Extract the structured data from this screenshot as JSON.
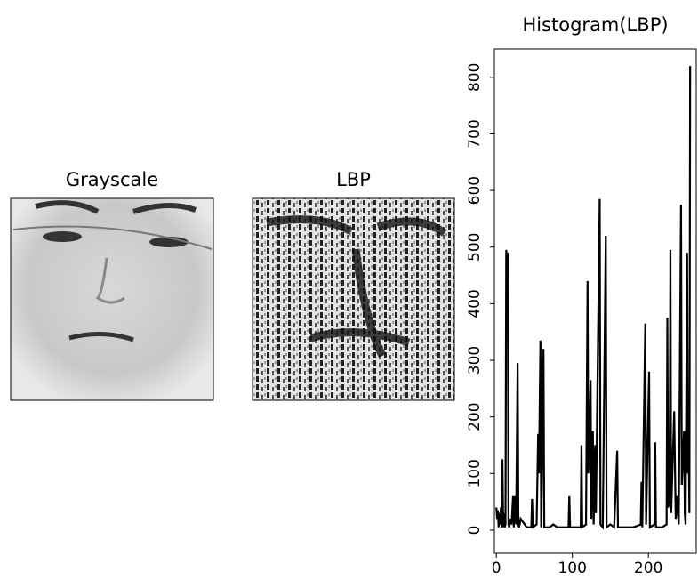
{
  "chart_data": [
    {
      "type": "image",
      "title": "Grayscale"
    },
    {
      "type": "image",
      "title": "LBP"
    },
    {
      "type": "line",
      "title": "Histogram(LBP)",
      "color": "#000000",
      "x": [
        0,
        1,
        2,
        3,
        4,
        5,
        6,
        7,
        8,
        9,
        10,
        11,
        12,
        13,
        14,
        15,
        16,
        17,
        18,
        20,
        22,
        23,
        24,
        26,
        28,
        29,
        30,
        32,
        40,
        46,
        47,
        48,
        53,
        55,
        56,
        58,
        59,
        62,
        63,
        65,
        70,
        75,
        80,
        90,
        95,
        96,
        97,
        105,
        111,
        112,
        113,
        118,
        120,
        121,
        124,
        125,
        127,
        128,
        130,
        131,
        136,
        137,
        140,
        144,
        145,
        150,
        155,
        159,
        160,
        170,
        180,
        190,
        191,
        192,
        196,
        197,
        201,
        202,
        208,
        209,
        210,
        218,
        224,
        225,
        226,
        228,
        229,
        230,
        234,
        236,
        237,
        240,
        243,
        244,
        247,
        248,
        249,
        251,
        252,
        253,
        254,
        255
      ],
      "values": [
        40,
        20,
        35,
        5,
        30,
        10,
        40,
        5,
        125,
        5,
        30,
        5,
        10,
        495,
        480,
        490,
        10,
        5,
        20,
        10,
        60,
        5,
        60,
        10,
        295,
        10,
        5,
        20,
        5,
        5,
        55,
        5,
        10,
        170,
        100,
        335,
        5,
        320,
        5,
        5,
        5,
        10,
        5,
        5,
        5,
        60,
        5,
        5,
        5,
        150,
        5,
        10,
        440,
        100,
        265,
        20,
        175,
        10,
        150,
        30,
        585,
        10,
        5,
        520,
        5,
        10,
        5,
        140,
        5,
        5,
        5,
        10,
        85,
        5,
        365,
        10,
        280,
        5,
        10,
        155,
        5,
        5,
        10,
        375,
        40,
        50,
        495,
        30,
        210,
        20,
        60,
        10,
        575,
        80,
        175,
        30,
        10,
        490,
        100,
        170,
        30,
        820
      ],
      "xlim": [
        -2.6,
        263
      ],
      "ylim": [
        -41,
        850
      ],
      "xticks": [
        0,
        100,
        200
      ],
      "yticks": [
        0,
        100,
        200,
        300,
        400,
        500,
        600,
        700,
        800
      ]
    }
  ]
}
